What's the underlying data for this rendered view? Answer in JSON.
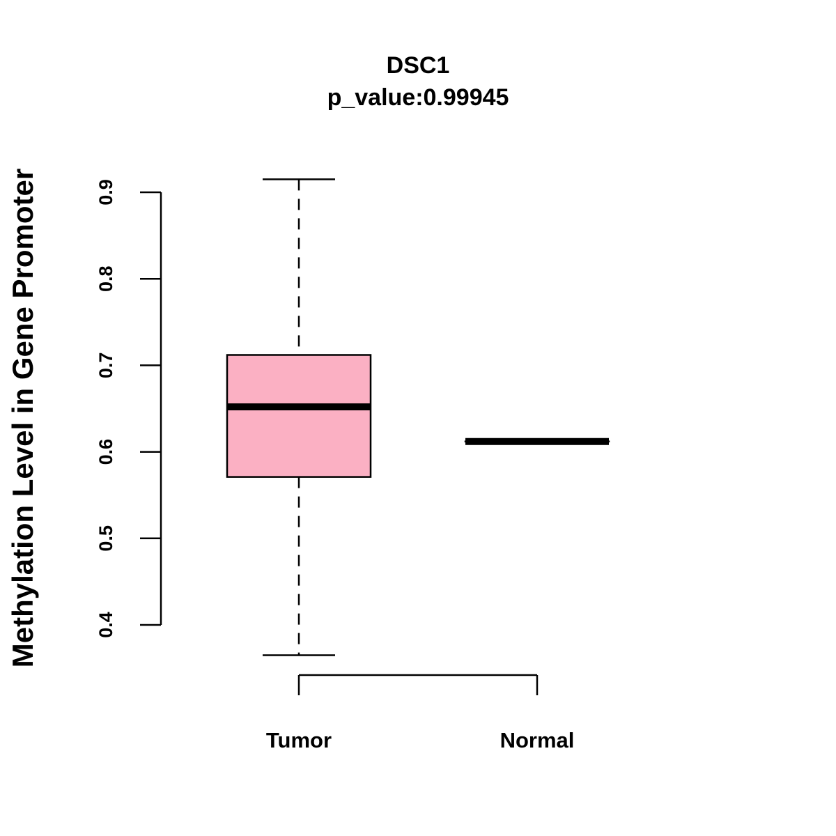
{
  "chart_data": {
    "type": "box",
    "title": "DSC1",
    "subtitle": "p_value:0.99945",
    "xlabel": "",
    "ylabel": "Methylation Level in Gene Promoter",
    "ylim": [
      0.4,
      0.9
    ],
    "yticks": [
      "0.4",
      "0.5",
      "0.6",
      "0.7",
      "0.8",
      "0.9"
    ],
    "grid": false,
    "categories": [
      "Tumor",
      "Normal"
    ],
    "boxes": [
      {
        "name": "Tumor",
        "whisker_low": 0.365,
        "q1": 0.571,
        "median": 0.652,
        "q3": 0.712,
        "whisker_high": 0.915,
        "fill": "#FBB0C3"
      },
      {
        "name": "Normal",
        "whisker_low": 0.612,
        "q1": 0.612,
        "median": 0.612,
        "q3": 0.612,
        "whisker_high": 0.612,
        "fill": "#FBB0C3"
      }
    ]
  }
}
